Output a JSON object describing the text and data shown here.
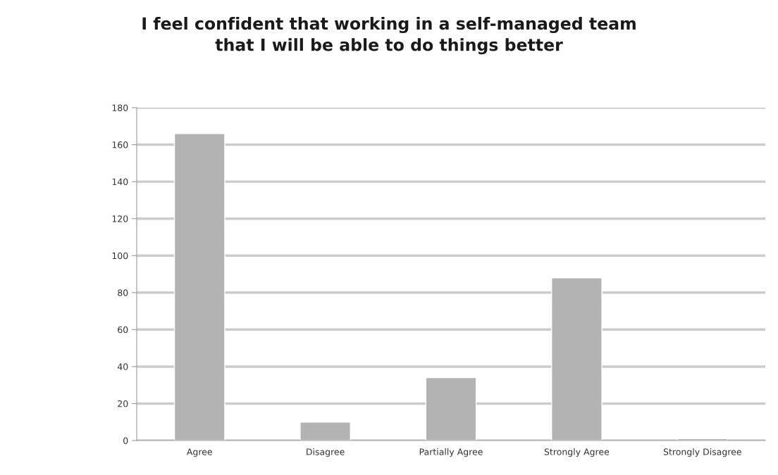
{
  "chart_data": {
    "type": "bar",
    "title": "I feel confident that working in a self-managed team\nthat I will be able to do things better",
    "categories": [
      "Agree",
      "Disagree",
      "Partially Agree",
      "Strongly Agree",
      "Strongly Disagree"
    ],
    "values": [
      166,
      10,
      34,
      88,
      1
    ],
    "color": "#b3b3b3",
    "ylim": [
      0,
      180
    ],
    "yticks": [
      0,
      20,
      40,
      60,
      80,
      100,
      120,
      140,
      160,
      180
    ],
    "grid": "y",
    "legend": false
  }
}
